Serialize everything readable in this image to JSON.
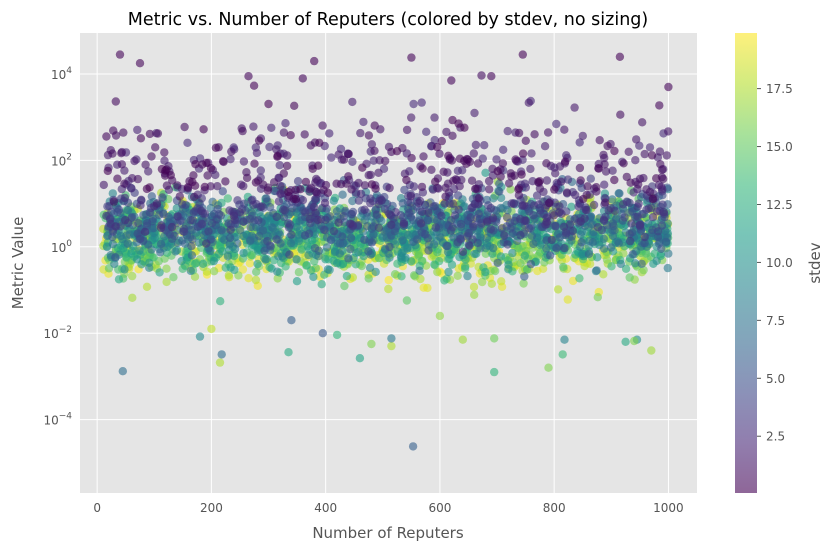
{
  "chart_data": {
    "type": "scatter",
    "title": "Metric vs. Number of Reputers (colored by stdev, no sizing)",
    "xlabel": "Number of Reputers",
    "ylabel": "Metric Value",
    "xlim": [
      -30,
      1050
    ],
    "ylim_log10": [
      -5.7,
      4.95
    ],
    "y_scale": "log",
    "grid": true,
    "background": "#e5e5e5",
    "x_ticks": [
      {
        "value": 0,
        "label": "0"
      },
      {
        "value": 200,
        "label": "200"
      },
      {
        "value": 400,
        "label": "400"
      },
      {
        "value": 600,
        "label": "600"
      },
      {
        "value": 800,
        "label": "800"
      },
      {
        "value": 1000,
        "label": "1000"
      }
    ],
    "y_ticks": [
      {
        "log10": 4,
        "base": "10",
        "exp": "4"
      },
      {
        "log10": 2,
        "base": "10",
        "exp": "2"
      },
      {
        "log10": 0,
        "base": "10",
        "exp": "0"
      },
      {
        "log10": -2,
        "base": "10",
        "exp": "−2"
      },
      {
        "log10": -4,
        "base": "10",
        "exp": "−4"
      }
    ],
    "colorbar": {
      "label": "stdev",
      "colormap": "viridis",
      "range": [
        0.05,
        19.9
      ],
      "ticks": [
        {
          "value": 2.5,
          "label": "2.5"
        },
        {
          "value": 5.0,
          "label": "5.0"
        },
        {
          "value": 7.5,
          "label": "7.5"
        },
        {
          "value": 10.0,
          "label": "10.0"
        },
        {
          "value": 12.5,
          "label": "12.5"
        },
        {
          "value": 15.0,
          "label": "15.0"
        },
        {
          "value": 17.5,
          "label": "17.5"
        }
      ]
    },
    "points": [
      [
        45,
        -2.88,
        7.2
      ],
      [
        553,
        -4.62,
        6.0
      ],
      [
        218,
        -2.49,
        7.0
      ],
      [
        215,
        -2.68,
        17.5
      ],
      [
        180,
        -2.08,
        9.5
      ],
      [
        335,
        -2.44,
        12.0
      ],
      [
        460,
        -2.58,
        11.5
      ],
      [
        515,
        -2.3,
        17.5
      ],
      [
        515,
        -2.12,
        8.0
      ],
      [
        695,
        -2.9,
        13.0
      ],
      [
        790,
        -2.8,
        16.0
      ],
      [
        815,
        -2.49,
        13.5
      ],
      [
        970,
        -2.4,
        17.0
      ],
      [
        640,
        -2.15,
        17.0
      ],
      [
        925,
        -2.2,
        12.0
      ],
      [
        395,
        -2.0,
        5.5
      ],
      [
        420,
        -2.04,
        13.0
      ],
      [
        480,
        -2.25,
        16.0
      ],
      [
        695,
        -2.12,
        15.5
      ],
      [
        818,
        -2.15,
        9.0
      ],
      [
        945,
        -2.15,
        10.0
      ],
      [
        940,
        -2.18,
        16.0
      ],
      [
        200,
        -1.9,
        18.0
      ],
      [
        340,
        -1.7,
        6.0
      ],
      [
        600,
        -1.6,
        16.5
      ],
      [
        40,
        4.45,
        0.3
      ],
      [
        75,
        4.25,
        0.3
      ],
      [
        380,
        4.3,
        0.2
      ],
      [
        550,
        4.38,
        0.3
      ],
      [
        745,
        4.45,
        0.2
      ],
      [
        915,
        4.4,
        0.2
      ],
      [
        360,
        3.9,
        0.5
      ],
      [
        265,
        3.95,
        0.4
      ],
      [
        690,
        3.95,
        0.4
      ],
      [
        620,
        3.85,
        0.4
      ],
      [
        1000,
        3.7,
        0.3
      ]
    ]
  }
}
